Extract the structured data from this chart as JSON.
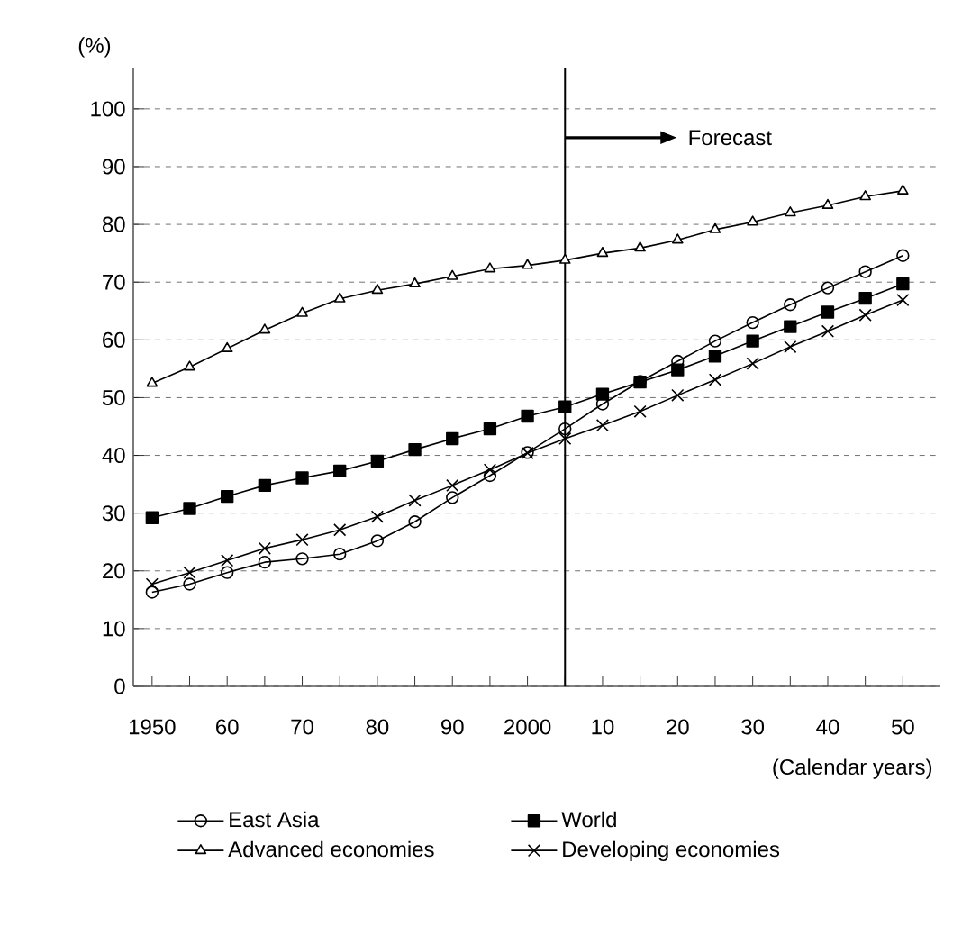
{
  "chart_data": {
    "type": "line",
    "x": [
      1950,
      1955,
      1960,
      1965,
      1970,
      1975,
      1980,
      1985,
      1990,
      1995,
      2000,
      2005,
      2010,
      2015,
      2020,
      2025,
      2030,
      2035,
      2040,
      2045,
      2050
    ],
    "series": [
      {
        "name": "East Asia",
        "color": "#000000",
        "marker": "circle",
        "values": [
          16.3,
          17.7,
          19.7,
          21.5,
          22.1,
          22.9,
          25.2,
          28.5,
          32.7,
          36.5,
          40.5,
          44.6,
          48.9,
          52.8,
          56.3,
          59.8,
          63.0,
          66.1,
          69.0,
          71.8,
          74.6
        ]
      },
      {
        "name": "World",
        "color": "#000000",
        "marker": "square",
        "values": [
          29.2,
          30.8,
          32.9,
          34.8,
          36.1,
          37.3,
          39.0,
          41.0,
          42.9,
          44.6,
          46.8,
          48.4,
          50.6,
          52.7,
          54.8,
          57.2,
          59.8,
          62.3,
          64.8,
          67.2,
          69.7
        ]
      },
      {
        "name": "Advanced economies",
        "color": "#000000",
        "marker": "triangle",
        "values": [
          52.5,
          55.3,
          58.5,
          61.7,
          64.6,
          67.1,
          68.6,
          69.7,
          71.0,
          72.3,
          72.9,
          73.8,
          75.0,
          75.9,
          77.3,
          79.1,
          80.4,
          82.0,
          83.3,
          84.8,
          85.8
        ]
      },
      {
        "name": "Developing economies",
        "color": "#000000",
        "marker": "cross",
        "values": [
          17.7,
          19.7,
          21.8,
          23.9,
          25.4,
          27.1,
          29.4,
          32.2,
          34.8,
          37.5,
          40.4,
          42.9,
          45.2,
          47.6,
          50.4,
          53.1,
          55.9,
          58.8,
          61.5,
          64.3,
          66.9
        ]
      }
    ],
    "ylabel": "(%)",
    "xlabel": "(Calendar years)",
    "xlim": [
      1947.5,
      2055
    ],
    "xticks": [
      {
        "value": 1950,
        "label": "1950"
      },
      {
        "value": 1955,
        "label": null
      },
      {
        "value": 1960,
        "label": "60"
      },
      {
        "value": 1965,
        "label": null
      },
      {
        "value": 1970,
        "label": "70"
      },
      {
        "value": 1975,
        "label": null
      },
      {
        "value": 1980,
        "label": "80"
      },
      {
        "value": 1985,
        "label": null
      },
      {
        "value": 1990,
        "label": "90"
      },
      {
        "value": 1995,
        "label": null
      },
      {
        "value": 2000,
        "label": "2000"
      },
      {
        "value": 2005,
        "label": null
      },
      {
        "value": 2010,
        "label": "10"
      },
      {
        "value": 2015,
        "label": null
      },
      {
        "value": 2020,
        "label": "20"
      },
      {
        "value": 2025,
        "label": null
      },
      {
        "value": 2030,
        "label": "30"
      },
      {
        "value": 2035,
        "label": null
      },
      {
        "value": 2040,
        "label": "40"
      },
      {
        "value": 2045,
        "label": null
      },
      {
        "value": 2050,
        "label": "50"
      }
    ],
    "ylim": [
      0,
      107
    ],
    "yticks": [
      0,
      10,
      20,
      30,
      40,
      50,
      60,
      70,
      80,
      90,
      100
    ],
    "grid": "y",
    "legend": "bottom",
    "line_style": "solid",
    "ref_lines": [
      {
        "axis": "x",
        "value": 2005,
        "color": "#000000",
        "line_style": "solid"
      }
    ],
    "annotations": [
      "Forecast"
    ]
  }
}
